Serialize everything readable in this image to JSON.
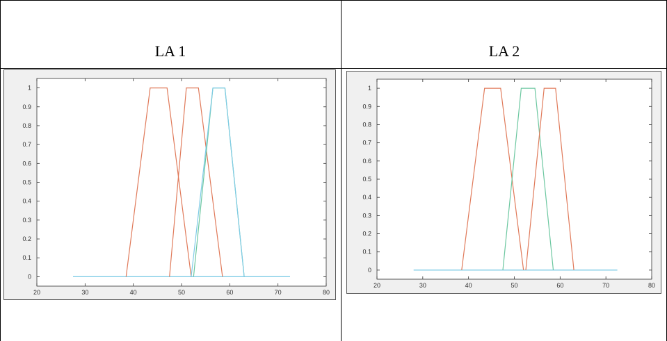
{
  "table": {
    "headers": [
      "LA 1",
      "LA 2"
    ]
  },
  "chart_data": [
    {
      "type": "line",
      "title": "",
      "xlabel": "",
      "ylabel": "",
      "xlim": [
        20,
        80
      ],
      "ylim": [
        -0.05,
        1.05
      ],
      "xticks": [
        20,
        30,
        40,
        50,
        60,
        70,
        80
      ],
      "yticks": [
        0,
        0.1,
        0.2,
        0.3,
        0.4,
        0.5,
        0.6,
        0.7,
        0.8,
        0.9,
        1
      ],
      "grid": false,
      "series": [
        {
          "color": "#7ecbe6",
          "x": [
            27.5,
            72.5
          ],
          "y": [
            0,
            0
          ]
        },
        {
          "color": "#e07a5a",
          "x": [
            38.5,
            43.5,
            47,
            52
          ],
          "y": [
            0,
            1,
            1,
            0
          ]
        },
        {
          "color": "#e07a5a",
          "x": [
            47.5,
            51,
            53.5,
            58.5
          ],
          "y": [
            0,
            1,
            1,
            0
          ]
        },
        {
          "color": "#6cc7a0",
          "x": [
            52.5,
            56.5,
            59,
            63
          ],
          "y": [
            0,
            1,
            1,
            0
          ]
        },
        {
          "color": "#7ecbe6",
          "x": [
            52,
            56.5,
            59,
            63
          ],
          "y": [
            0,
            1,
            1,
            0
          ]
        }
      ]
    },
    {
      "type": "line",
      "title": "",
      "xlabel": "",
      "ylabel": "",
      "xlim": [
        20,
        80
      ],
      "ylim": [
        -0.05,
        1.05
      ],
      "xticks": [
        20,
        30,
        40,
        50,
        60,
        70,
        80
      ],
      "yticks": [
        0,
        0.1,
        0.2,
        0.3,
        0.4,
        0.5,
        0.6,
        0.7,
        0.8,
        0.9,
        1
      ],
      "grid": false,
      "series": [
        {
          "color": "#7ecbe6",
          "x": [
            28,
            72.5
          ],
          "y": [
            0,
            0
          ]
        },
        {
          "color": "#e07a5a",
          "x": [
            38.5,
            43.5,
            47,
            52
          ],
          "y": [
            0,
            1,
            1,
            0
          ]
        },
        {
          "color": "#6cc7a0",
          "x": [
            47.5,
            51.5,
            54.5,
            58.5
          ],
          "y": [
            0,
            1,
            1,
            0
          ]
        },
        {
          "color": "#e07a5a",
          "x": [
            52.5,
            56.5,
            59,
            63
          ],
          "y": [
            0,
            1,
            1,
            0
          ]
        }
      ]
    }
  ]
}
